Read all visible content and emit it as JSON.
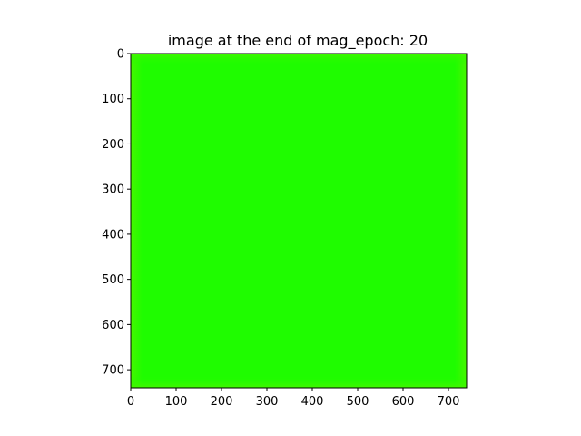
{
  "chart_data": {
    "type": "heatmap",
    "title": "image at the end of mag_epoch: 20",
    "xlabel": "",
    "ylabel": "",
    "xlim": [
      0,
      740
    ],
    "ylim": [
      740,
      0
    ],
    "x_ticks": [
      0,
      100,
      200,
      300,
      400,
      500,
      600,
      700
    ],
    "y_ticks": [
      0,
      100,
      200,
      300,
      400,
      500,
      600,
      700
    ],
    "grid": false,
    "image": {
      "description": "uniform bright green image with slightly lighter yellow-green edges",
      "fill_color": "#1ffc00",
      "edge_color": "#46f600"
    }
  }
}
